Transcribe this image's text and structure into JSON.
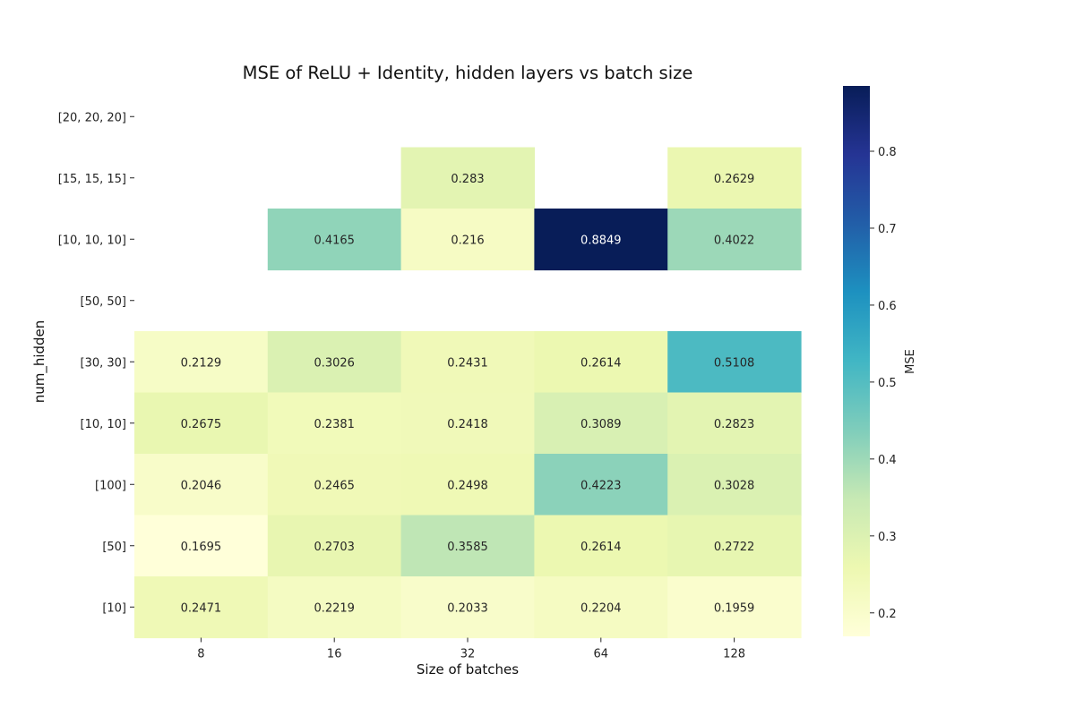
{
  "chart_data": {
    "type": "heatmap",
    "title": "MSE of ReLU + Identity, hidden layers vs batch size",
    "xlabel": "Size of batches",
    "ylabel": "num_hidden",
    "x_categories": [
      "8",
      "16",
      "32",
      "64",
      "128"
    ],
    "y_categories": [
      "[20, 20, 20]",
      "[15, 15, 15]",
      "[10, 10, 10]",
      "[50, 50]",
      "[30, 30]",
      "[10, 10]",
      "[100]",
      "[50]",
      "[10]"
    ],
    "values": [
      [
        null,
        null,
        null,
        null,
        null
      ],
      [
        null,
        null,
        0.283,
        null,
        0.2629
      ],
      [
        null,
        0.4165,
        0.216,
        0.8849,
        0.4022
      ],
      [
        null,
        null,
        null,
        null,
        null
      ],
      [
        0.2129,
        0.3026,
        0.2431,
        0.2614,
        0.5108
      ],
      [
        0.2675,
        0.2381,
        0.2418,
        0.3089,
        0.2823
      ],
      [
        0.2046,
        0.2465,
        0.2498,
        0.4223,
        0.3028
      ],
      [
        0.1695,
        0.2703,
        0.3585,
        0.2614,
        0.2722
      ],
      [
        0.2471,
        0.2219,
        0.2033,
        0.2204,
        0.1959
      ]
    ],
    "colorbar": {
      "label": "MSE",
      "range": [
        0.1695,
        0.8849
      ],
      "ticks": [
        0.2,
        0.3,
        0.4,
        0.5,
        0.6,
        0.7,
        0.8
      ],
      "tick_labels": [
        "0.2",
        "0.3",
        "0.4",
        "0.5",
        "0.6",
        "0.7",
        "0.8"
      ],
      "colormap": "YlGnBu"
    },
    "colormap_stops": [
      "#ffffd9",
      "#edf8b1",
      "#c7e9b4",
      "#7fcdbb",
      "#41b6c4",
      "#1d91c0",
      "#225ea8",
      "#253494",
      "#081d58"
    ],
    "missing_cells": "blank"
  }
}
